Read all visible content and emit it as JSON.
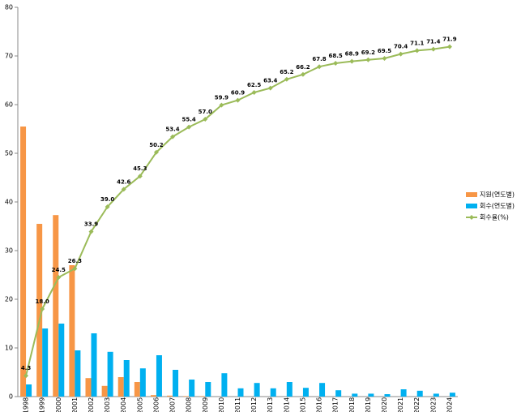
{
  "chart_data": {
    "type": "bar",
    "categories": [
      "1998",
      "1999",
      "2000",
      "2001",
      "2002",
      "2003",
      "2004",
      "2005",
      "2006",
      "2007",
      "2008",
      "2009",
      "2010",
      "2011",
      "2012",
      "2013",
      "2014",
      "2015",
      "2016",
      "2017",
      "2018",
      "2019",
      "2020",
      "2021",
      "2022",
      "2023",
      "2024"
    ],
    "series": [
      {
        "name": "지원(연도별)",
        "color": "#f79646",
        "type": "bar",
        "values": [
          55.5,
          35.5,
          37.3,
          27,
          3.8,
          2.2,
          4,
          3,
          0.3,
          0.2,
          0.1,
          0.1,
          0,
          0,
          0,
          0,
          0,
          0,
          0,
          0,
          0,
          0,
          0,
          0,
          0,
          0,
          0
        ]
      },
      {
        "name": "회수(연도별)",
        "color": "#00b0f0",
        "type": "bar",
        "values": [
          2.5,
          14,
          15,
          9.5,
          13,
          9.2,
          7.5,
          5.8,
          8.5,
          5.5,
          3.5,
          3,
          4.8,
          1.7,
          2.8,
          1.7,
          3,
          1.8,
          2.8,
          1.3,
          0.6,
          0.6,
          0.5,
          1.5,
          1.2,
          0.6,
          0.8
        ]
      },
      {
        "name": "회수율(%)",
        "color": "#9bbb59",
        "type": "line",
        "values": [
          4.3,
          18.0,
          24.5,
          26.3,
          33.9,
          39.0,
          42.6,
          45.3,
          50.2,
          53.4,
          55.4,
          57.0,
          59.9,
          60.9,
          62.5,
          63.4,
          65.2,
          66.2,
          67.8,
          68.5,
          68.9,
          69.2,
          69.5,
          70.4,
          71.1,
          71.4,
          71.9
        ],
        "value_labels": [
          "4.3",
          "18.0",
          "24.5",
          "26.3",
          "33.9",
          "39.0",
          "42.6",
          "45.3",
          "50.2",
          "53.4",
          "55.4",
          "57.0",
          "59.9",
          "60.9",
          "62.5",
          "63.4",
          "65.2",
          "66.2",
          "67.8",
          "68.5",
          "68.9",
          "69.2",
          "69.5",
          "70.4",
          "71.1",
          "71.4",
          "71.9"
        ]
      }
    ],
    "ylim": [
      0,
      80
    ],
    "yticks": [
      0,
      10,
      20,
      30,
      40,
      50,
      60,
      70,
      80
    ],
    "legend": "right"
  }
}
